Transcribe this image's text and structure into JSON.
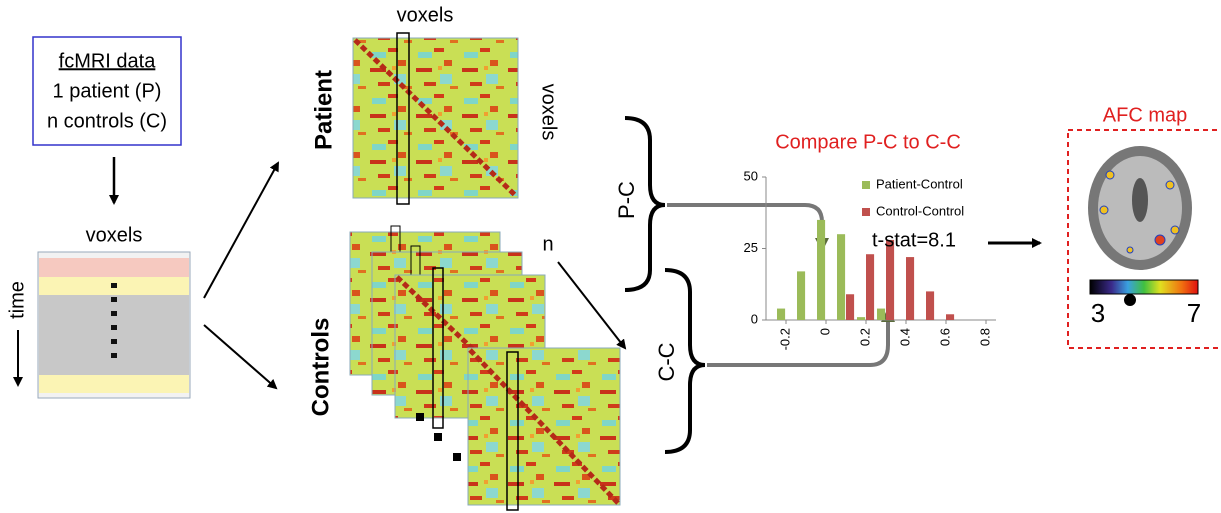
{
  "input_box": {
    "lines": [
      "fcMRI data",
      "1 patient (P)",
      "n controls (C)"
    ]
  },
  "timeseries": {
    "x_label": "voxels",
    "y_label": "time"
  },
  "patient": {
    "label": "Patient",
    "top_label": "voxels",
    "side_label": "voxels"
  },
  "controls": {
    "label": "Controls",
    "count": "n"
  },
  "braces": {
    "patient_control": "P-C",
    "control_control": "C-C"
  },
  "chart_data": {
    "type": "bar",
    "title": "Compare P-C to C-C",
    "x": [
      -0.2,
      -0.1,
      0,
      0.1,
      0.2,
      0.3,
      0.4,
      0.5,
      0.6
    ],
    "series": [
      {
        "name": "Patient-Control",
        "color": "#9bbb59",
        "values": [
          4,
          17,
          35,
          30,
          1,
          4,
          0,
          0,
          0
        ]
      },
      {
        "name": "Control-Control",
        "color": "#c0504d",
        "values": [
          0,
          0,
          0,
          9,
          23,
          28,
          22,
          10,
          2
        ]
      }
    ],
    "xlim": [
      -0.3,
      0.85
    ],
    "xticks": [
      -0.2,
      0,
      0.2,
      0.4,
      0.6,
      0.8
    ],
    "ylim": [
      0,
      50
    ],
    "yticks": [
      0,
      25,
      50
    ],
    "legend": "upper right",
    "annotation": "t-stat=8.1"
  },
  "afc_map": {
    "title": "AFC map",
    "colorbar_min": 3,
    "colorbar_max": 7
  }
}
